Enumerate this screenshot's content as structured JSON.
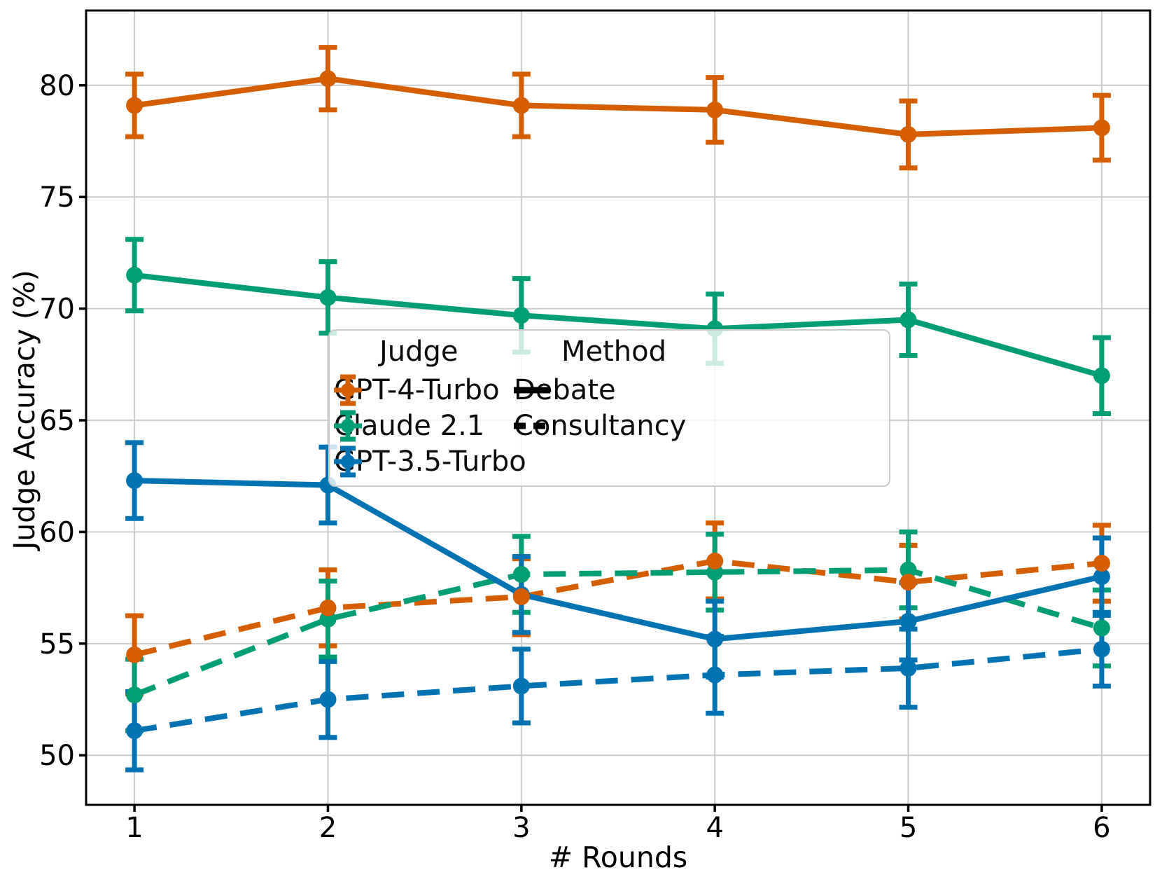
{
  "figure": {
    "background": "#ffffff",
    "grid_color": "#cbcbcb",
    "spine_color": "#000000",
    "tick_color": "#000000",
    "black": "#000000"
  },
  "chart_data": {
    "type": "line",
    "title": "",
    "xlabel": "# Rounds",
    "ylabel": "Judge Accuracy (%)",
    "grid": true,
    "legend_position": "center",
    "x": [
      1,
      2,
      3,
      4,
      5,
      6
    ],
    "xticks": [
      1,
      2,
      3,
      4,
      5,
      6
    ],
    "yticks": [
      50,
      55,
      60,
      65,
      70,
      75,
      80
    ],
    "xlim": [
      0.75,
      6.25
    ],
    "ylim": [
      47.78,
      83.35
    ],
    "series": [
      {
        "name": "GPT-4-Turbo Debate",
        "judge": "GPT-4-Turbo",
        "method": "Debate",
        "color": "#d55e00",
        "line": "solid",
        "values": [
          79.1,
          80.3,
          79.1,
          78.9,
          77.8,
          78.1
        ],
        "errors": [
          1.4,
          1.4,
          1.4,
          1.45,
          1.5,
          1.45
        ]
      },
      {
        "name": "GPT-4-Turbo Consultancy",
        "judge": "GPT-4-Turbo",
        "method": "Consultancy",
        "color": "#d55e00",
        "line": "dashed",
        "values": [
          54.5,
          56.6,
          57.1,
          58.7,
          57.75,
          58.6
        ],
        "errors": [
          1.75,
          1.7,
          1.7,
          1.7,
          1.65,
          1.7
        ]
      },
      {
        "name": "Claude 2.1 Debate",
        "judge": "Claude 2.1",
        "method": "Debate",
        "color": "#029e73",
        "line": "solid",
        "values": [
          71.5,
          70.5,
          69.7,
          69.1,
          69.5,
          67.0
        ],
        "errors": [
          1.6,
          1.6,
          1.65,
          1.55,
          1.6,
          1.7
        ]
      },
      {
        "name": "Claude 2.1 Consultancy",
        "judge": "Claude 2.1",
        "method": "Consultancy",
        "color": "#029e73",
        "line": "dashed",
        "values": [
          52.7,
          56.1,
          58.1,
          58.2,
          58.3,
          55.7
        ],
        "errors": [
          1.6,
          1.7,
          1.7,
          1.7,
          1.7,
          1.7
        ]
      },
      {
        "name": "GPT-3.5-Turbo Debate",
        "judge": "GPT-3.5-Turbo",
        "method": "Debate",
        "color": "#0173b2",
        "line": "solid",
        "values": [
          62.3,
          62.1,
          57.2,
          55.2,
          56.0,
          58.0
        ],
        "errors": [
          1.7,
          1.7,
          1.7,
          1.7,
          1.73,
          1.73
        ]
      },
      {
        "name": "GPT-3.5-Turbo Consultancy",
        "judge": "GPT-3.5-Turbo",
        "method": "Consultancy",
        "color": "#0173b2",
        "line": "dashed",
        "values": [
          51.1,
          52.5,
          53.1,
          53.6,
          53.9,
          54.75
        ],
        "errors": [
          1.75,
          1.7,
          1.65,
          1.72,
          1.75,
          1.65
        ]
      }
    ]
  },
  "legend": {
    "judge_title": "Judge",
    "method_title": "Method",
    "judges": [
      {
        "label": "GPT-4-Turbo",
        "color": "#d55e00"
      },
      {
        "label": "Claude 2.1",
        "color": "#029e73"
      },
      {
        "label": "GPT-3.5-Turbo",
        "color": "#0173b2"
      }
    ],
    "methods": [
      {
        "label": "Debate",
        "style": "solid"
      },
      {
        "label": "Consultancy",
        "style": "dashed"
      }
    ]
  }
}
